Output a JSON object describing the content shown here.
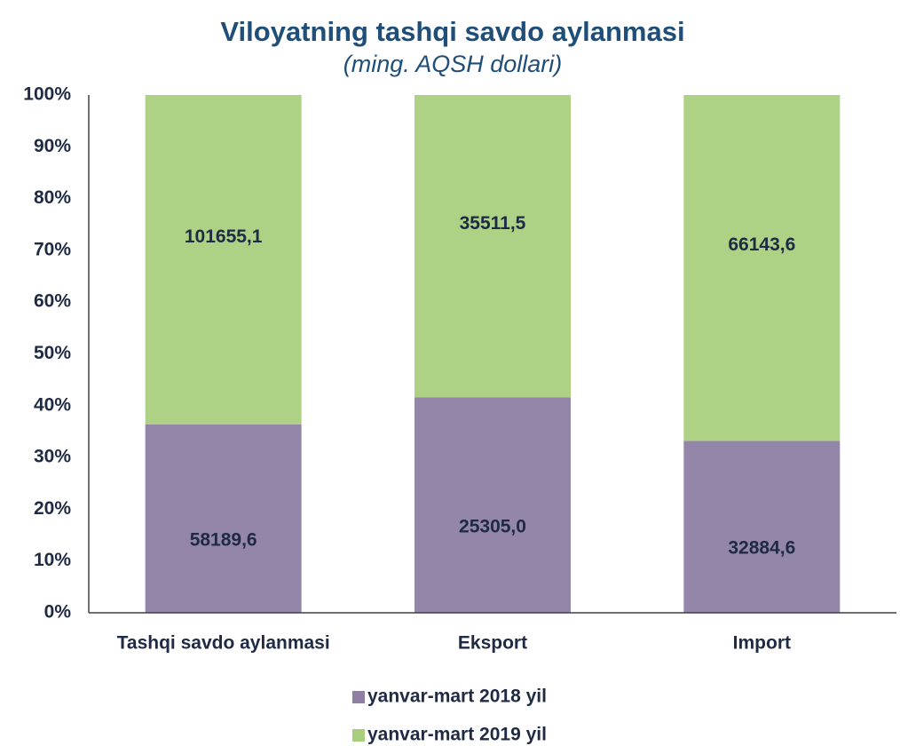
{
  "chart_data": {
    "type": "bar",
    "stack": "percent",
    "title": "Viloyatning tashqi savdo aylanmasi",
    "subtitle": "(ming. AQSH dollari)",
    "categories": [
      "Tashqi savdo aylanmasi",
      "Eksport",
      "Import"
    ],
    "series": [
      {
        "name": "yanvar-mart 2018 yil",
        "color": "#8e7fa3",
        "values": [
          58189.6,
          25305.0,
          32884.6
        ],
        "value_labels": [
          "58189,6",
          "25305,0",
          "32884,6"
        ]
      },
      {
        "name": "yanvar-mart 2019 yil",
        "color": "#a9cf7e",
        "values": [
          101655.1,
          35511.5,
          66143.6
        ],
        "value_labels": [
          "101655,1",
          "35511,5",
          "66143,6"
        ]
      }
    ],
    "ylim": [
      0,
      100
    ],
    "yticks": [
      {
        "value": 0,
        "label": "0%"
      },
      {
        "value": 10,
        "label": "10%"
      },
      {
        "value": 20,
        "label": "20%"
      },
      {
        "value": 30,
        "label": "30%"
      },
      {
        "value": 40,
        "label": "40%"
      },
      {
        "value": 50,
        "label": "50%"
      },
      {
        "value": 60,
        "label": "60%"
      },
      {
        "value": 70,
        "label": "70%"
      },
      {
        "value": 80,
        "label": "80%"
      },
      {
        "value": 90,
        "label": "90%"
      },
      {
        "value": 100,
        "label": "100%"
      }
    ],
    "grid": false,
    "legend": "bottom"
  }
}
